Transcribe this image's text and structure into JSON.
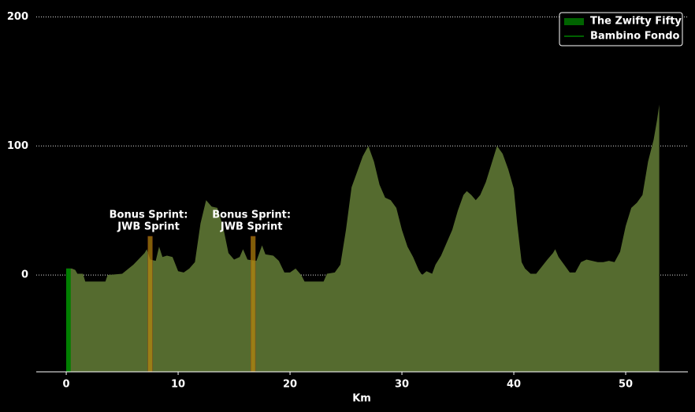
{
  "chart_data": {
    "type": "area",
    "x_label": "Km",
    "xlim": [
      -2.68,
      55.56
    ],
    "ylim": [
      -75,
      207
    ],
    "xticks": [
      0,
      10,
      20,
      30,
      40,
      50
    ],
    "yticks": [
      0,
      100,
      200
    ],
    "grid": true,
    "legend": "upper right",
    "series": [
      {
        "name": "The Zwifty Fifty",
        "color": "#556b2f",
        "legend_marker": "patch",
        "legend_color": "#006400",
        "x": [
          0,
          0.5,
          0.8,
          1,
          1.5,
          1.7,
          3.5,
          3.7,
          5,
          6,
          7,
          7.2,
          7.5,
          8,
          8.3,
          8.6,
          9,
          9.5,
          10,
          10.5,
          11,
          11.5,
          12,
          12.5,
          13,
          13.5,
          14,
          14.5,
          15,
          15.5,
          15.8,
          16.2,
          17,
          17.5,
          17.8,
          18.5,
          19,
          19.5,
          20,
          20.5,
          21,
          21.3,
          23,
          23.3,
          24,
          24.5,
          25,
          25.5,
          26,
          26.5,
          27,
          27.5,
          28,
          28.5,
          29,
          29.5,
          30,
          30.5,
          31,
          31.5,
          31.8,
          32.2,
          32.7,
          33,
          33.5,
          34,
          34.5,
          35,
          35.5,
          35.8,
          36.2,
          36.6,
          37,
          37.5,
          38,
          38.5,
          39,
          39.5,
          40,
          40.3,
          40.7,
          41,
          41.5,
          42,
          43,
          43.5,
          43.7,
          44,
          44.5,
          45,
          45.5,
          46,
          46.5,
          47,
          47.5,
          48,
          48.5,
          49,
          49.5,
          50,
          50.5,
          51,
          51.5,
          52,
          52.5,
          52.8,
          53
        ],
        "values": [
          5,
          5,
          4,
          1,
          1,
          -5,
          -5,
          0,
          1,
          8,
          17,
          20,
          12,
          11,
          22,
          14,
          15,
          14,
          3,
          2,
          5,
          10,
          40,
          58,
          53,
          52,
          38,
          17,
          12,
          14,
          20,
          12,
          11,
          23,
          16,
          15,
          11,
          2,
          2,
          5,
          0,
          -5,
          -5,
          1,
          2,
          8,
          35,
          68,
          80,
          92,
          100,
          88,
          70,
          60,
          58,
          52,
          35,
          22,
          14,
          4,
          0,
          3,
          1,
          8,
          15,
          25,
          35,
          50,
          62,
          65,
          62,
          58,
          62,
          72,
          86,
          100,
          94,
          82,
          67,
          40,
          10,
          5,
          1,
          1,
          12,
          17,
          20,
          14,
          8,
          2,
          2,
          10,
          12,
          11,
          10,
          10,
          11,
          10,
          18,
          38,
          52,
          56,
          62,
          88,
          105,
          120,
          132
        ]
      },
      {
        "name": "Bambino Fondo",
        "color": "#008000",
        "legend_marker": "line",
        "legend_color": "#008000",
        "x": [
          0,
          0.4
        ],
        "values": [
          5,
          5
        ]
      }
    ],
    "annotations": [
      {
        "label_lines": [
          "Bonus Sprint:",
          "JWB Sprint"
        ],
        "x_start": 7.3,
        "x_end": 7.7,
        "height": 30,
        "color": "#b8860b"
      },
      {
        "label_lines": [
          "Bonus Sprint:",
          "JWB Sprint"
        ],
        "x_start": 16.5,
        "x_end": 16.9,
        "height": 30,
        "color": "#b8860b"
      }
    ]
  }
}
